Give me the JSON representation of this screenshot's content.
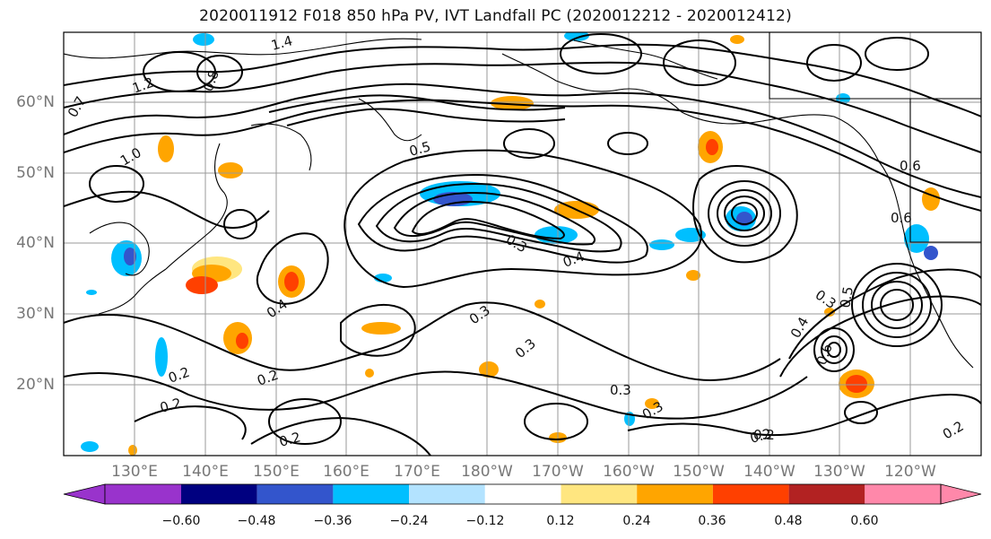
{
  "title": "2020011912 F018 850 hPa PV, IVT Landfall PC (2020012212 - 2020012412)",
  "map": {
    "lat_labels": [
      "60°N",
      "50°N",
      "40°N",
      "30°N",
      "20°N"
    ],
    "lon_labels": [
      "130°E",
      "140°E",
      "150°E",
      "160°E",
      "170°E",
      "180°W",
      "170°W",
      "160°W",
      "150°W",
      "140°W",
      "130°W",
      "120°W"
    ],
    "contour_labels": [
      "1.4",
      "1.2",
      "1.0",
      "0.8",
      "0.7",
      "0.5",
      "0.4",
      "0.3",
      "0.2",
      "0.3",
      "0.2",
      "0.6",
      "0.3",
      "0.2",
      "0.2",
      "0.3",
      "0.5",
      "0.6",
      "0.4",
      "0.3",
      "0.2",
      "0.4",
      "0.6",
      "0.2",
      "0.2",
      "0.3"
    ]
  },
  "colorbar": {
    "colors": [
      "#9933cc",
      "#000080",
      "#3355cc",
      "#00bfff",
      "#b3e3ff",
      "#ffffff",
      "#ffe680",
      "#ffa500",
      "#ff4000",
      "#b22222",
      "#ff88aa"
    ],
    "ticks": [
      "−0.60",
      "−0.48",
      "−0.36",
      "−0.24",
      "−0.12",
      "0.12",
      "0.24",
      "0.36",
      "0.48",
      "0.60"
    ]
  }
}
